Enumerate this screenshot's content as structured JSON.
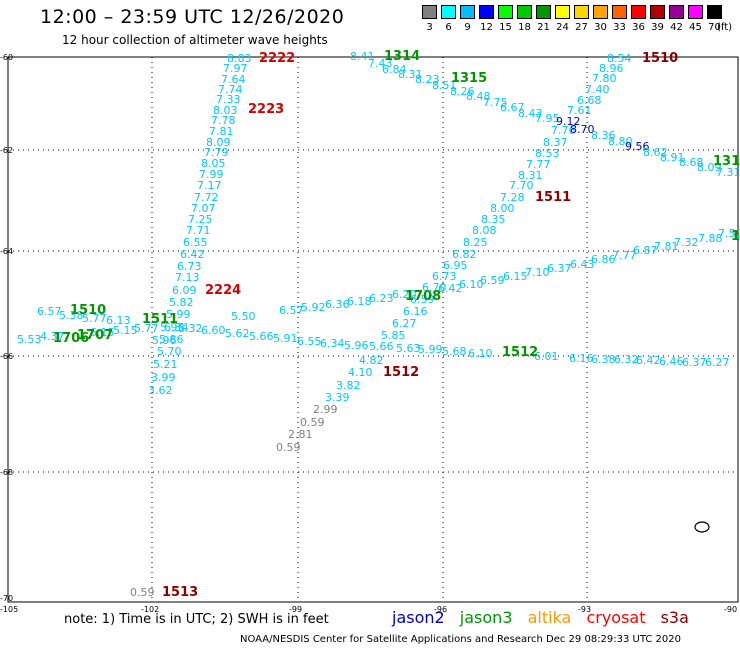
{
  "title": "12:00 – 23:59 UTC 12/26/2020",
  "subtitle": "12 hour collection of altimeter wave heights",
  "scale": {
    "labels": [
      "3",
      "6",
      "9",
      "12",
      "15",
      "18",
      "21",
      "24",
      "27",
      "30",
      "33",
      "36",
      "39",
      "42",
      "45",
      "70"
    ],
    "unit": "(ft)",
    "colors": [
      "#808080",
      "#00ffff",
      "#00bfff",
      "#0000ff",
      "#00ff00",
      "#00c800",
      "#009600",
      "#ffff00",
      "#ffd700",
      "#ffa500",
      "#ff6400",
      "#ff0000",
      "#b40000",
      "#960096",
      "#ff00ff",
      "#000000"
    ]
  },
  "axes": {
    "lat_labels": [
      "-60",
      "-62",
      "-64",
      "-66",
      "-68",
      "-70"
    ],
    "lon_labels": [
      "-105",
      "-102",
      "-99",
      "-96",
      "-93",
      "-90"
    ]
  },
  "pass_labels": [
    {
      "text": "2222",
      "color": "#d40000"
    },
    {
      "text": "2223",
      "color": "#d40000"
    },
    {
      "text": "2224",
      "color": "#d40000"
    },
    {
      "text": "1314",
      "color": "#009600"
    },
    {
      "text": "1315",
      "color": "#009600"
    },
    {
      "text": "1510",
      "color": "#8b0000"
    },
    {
      "text": "1511",
      "color": "#8b0000"
    },
    {
      "text": "1510",
      "color": "#009600"
    },
    {
      "text": "1511",
      "color": "#009600"
    },
    {
      "text": "1706",
      "color": "#009600"
    },
    {
      "text": "1707",
      "color": "#009600"
    },
    {
      "text": "1708",
      "color": "#009600"
    },
    {
      "text": "1512",
      "color": "#009600"
    },
    {
      "text": "1512",
      "color": "#8b0000"
    },
    {
      "text": "1513",
      "color": "#8b0000"
    },
    {
      "text": "131",
      "color": "#009600"
    },
    {
      "text": "1",
      "color": "#009600"
    }
  ],
  "wave_labels": [
    "8.83",
    "7.97",
    "7.64",
    "7.74",
    "7.33",
    "8.03",
    "7.78",
    "7.81",
    "8.09",
    "7.79",
    "8.05",
    "7.99",
    "7.17",
    "7.72",
    "7.07",
    "7.25",
    "7.71",
    "6.55",
    "6.42",
    "6.73",
    "7.13",
    "6.09",
    "5.82",
    "5.99",
    "5.95",
    "5.86",
    "5.70",
    "5.21",
    "3.99",
    "3.62",
    "8.41",
    "7.43",
    "6.84",
    "8.31",
    "8.23",
    "8.51",
    "8.26",
    "8.48",
    "7.75",
    "6.67",
    "8.43",
    "7.95",
    "9.12",
    "7.76",
    "8.70",
    "8.37",
    "8.53",
    "7.77",
    "8.31",
    "7.70",
    "7.28",
    "8.00",
    "8.35",
    "8.08",
    "8.25",
    "6.82",
    "6.95",
    "6.73",
    "6.70",
    "6.59",
    "6.27",
    "6.16",
    "5.85",
    "5.63",
    "5.99",
    "5.68",
    "6.10",
    "8.54",
    "8.96",
    "7.80",
    "7.40",
    "6.68",
    "7.61",
    "8.36",
    "8.80",
    "9.56",
    "8.62",
    "8.91",
    "8.68",
    "8.09",
    "7.31",
    "7.50",
    "7.88",
    "7.32",
    "7.81",
    "6.87",
    "7.77",
    "6.86",
    "6.43",
    "6.37",
    "7.10",
    "6.15",
    "6.59",
    "6.10",
    "6.42",
    "6.57",
    "5.92",
    "6.36",
    "6.18",
    "6.23",
    "6.20",
    "5.50",
    "5.62",
    "5.66",
    "5.91",
    "6.55",
    "6.34",
    "5.96",
    "5.66",
    "6.60",
    "6.32",
    "6.34",
    "6.57",
    "5.38",
    "5.77",
    "6.13",
    "5.53",
    "4.37",
    "6.15",
    "5.15",
    "5.77",
    "5.96",
    "4.82",
    "4.10",
    "3.82",
    "3.39",
    "2.99",
    "0.59",
    "2.81",
    "0.59",
    "0.59",
    "6.01",
    "6.16",
    "6.38",
    "6.32",
    "6.42",
    "6.46",
    "6.37",
    "6.27"
  ],
  "note": "note:  1) Time is in UTC;  2) SWH is in feet",
  "satellites": [
    {
      "name": "jason2",
      "color": "#0000cc"
    },
    {
      "name": "jason3",
      "color": "#009600"
    },
    {
      "name": "altika",
      "color": "#ff9900"
    },
    {
      "name": "cryosat",
      "color": "#ff0000"
    },
    {
      "name": "s3a",
      "color": "#8b0000"
    }
  ],
  "credit": "NOAA/NESDIS Center for Satellite Applications and Research     Dec 29 08:29:33 UTC 2020"
}
